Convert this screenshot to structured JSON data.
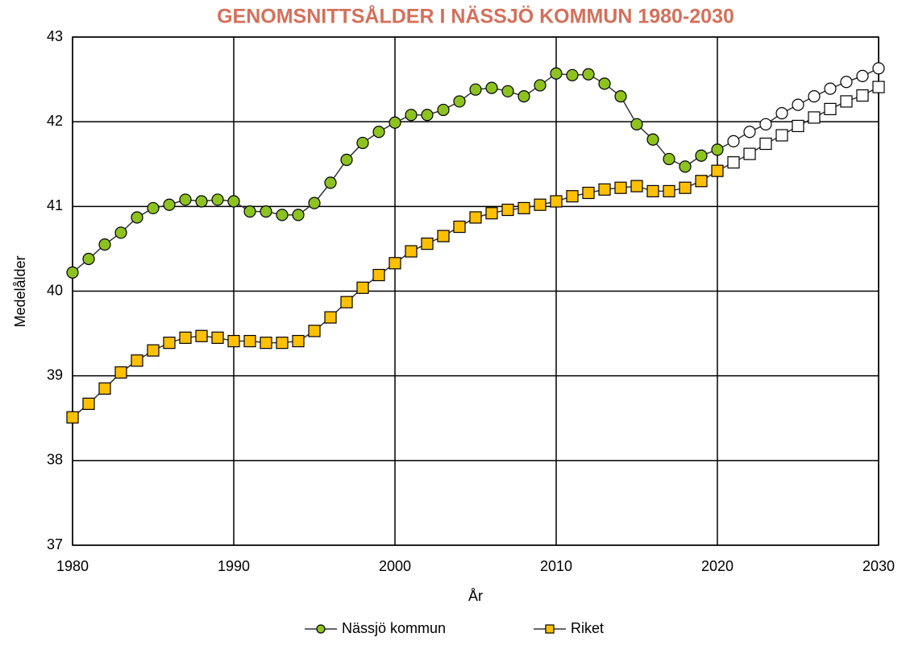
{
  "chart_data": {
    "type": "line",
    "title": "GENOMSNITTSÅLDER I NÄSSJÖ KOMMUN 1980-2030",
    "title_color": "#d4705a",
    "x_label": "År",
    "y_label": "Medelålder",
    "x": [
      1980,
      1981,
      1982,
      1983,
      1984,
      1985,
      1986,
      1987,
      1988,
      1989,
      1990,
      1991,
      1992,
      1993,
      1994,
      1995,
      1996,
      1997,
      1998,
      1999,
      2000,
      2001,
      2002,
      2003,
      2004,
      2005,
      2006,
      2007,
      2008,
      2009,
      2010,
      2011,
      2012,
      2013,
      2014,
      2015,
      2016,
      2017,
      2018,
      2019,
      2020,
      2021,
      2022,
      2023,
      2024,
      2025,
      2026,
      2027,
      2028,
      2029,
      2030
    ],
    "projection_start": 2021,
    "series": [
      {
        "name": "Nässjö kommun",
        "color": "#8dc21f",
        "marker": "circle",
        "values": [
          40.22,
          40.38,
          40.55,
          40.69,
          40.87,
          40.98,
          41.02,
          41.08,
          41.06,
          41.08,
          41.06,
          40.94,
          40.94,
          40.9,
          40.9,
          41.04,
          41.28,
          41.55,
          41.75,
          41.88,
          41.99,
          42.08,
          42.08,
          42.14,
          42.24,
          42.38,
          42.4,
          42.36,
          42.3,
          42.43,
          42.57,
          42.55,
          42.56,
          42.45,
          42.3,
          41.97,
          41.79,
          41.56,
          41.47,
          41.6,
          41.67,
          41.77,
          41.88,
          41.97,
          42.1,
          42.2,
          42.3,
          42.39,
          42.47,
          42.54,
          42.63
        ]
      },
      {
        "name": "Riket",
        "color": "#ffc000",
        "marker": "square",
        "values": [
          38.51,
          38.67,
          38.85,
          39.04,
          39.18,
          39.3,
          39.39,
          39.45,
          39.47,
          39.45,
          39.41,
          39.41,
          39.39,
          39.39,
          39.41,
          39.53,
          39.69,
          39.87,
          40.04,
          40.19,
          40.33,
          40.47,
          40.56,
          40.65,
          40.76,
          40.87,
          40.92,
          40.96,
          40.98,
          41.02,
          41.06,
          41.12,
          41.16,
          41.2,
          41.22,
          41.24,
          41.18,
          41.18,
          41.22,
          41.3,
          41.42,
          41.52,
          41.62,
          41.74,
          41.84,
          41.95,
          42.05,
          42.15,
          42.24,
          42.31,
          42.41
        ]
      }
    ],
    "xlim": [
      1980,
      2030
    ],
    "xticks": [
      1980,
      1990,
      2000,
      2010,
      2020,
      2030
    ],
    "ylim": [
      37,
      43
    ],
    "yticks": [
      37,
      38,
      39,
      40,
      41,
      42,
      43
    ],
    "grid": true,
    "legend": "bottom"
  }
}
